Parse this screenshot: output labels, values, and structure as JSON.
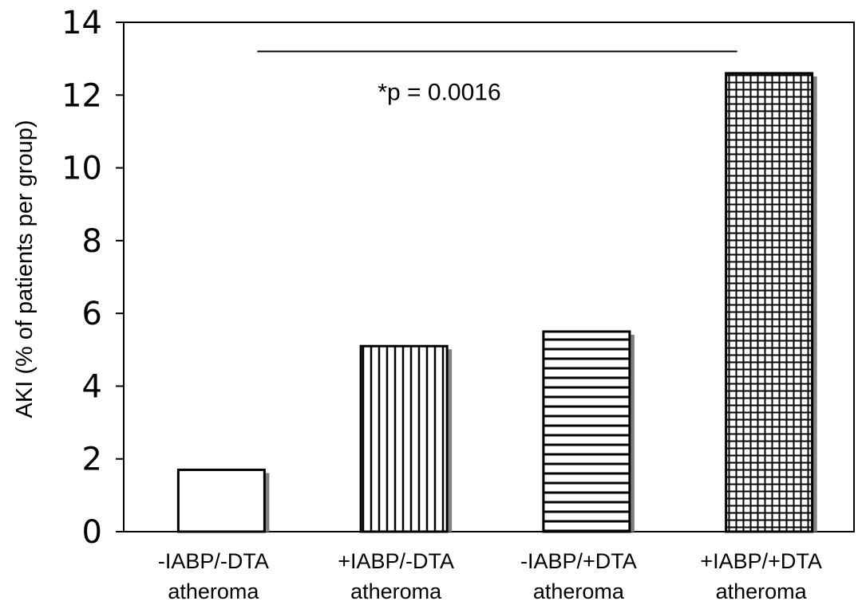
{
  "chart_data": {
    "type": "bar",
    "title": "",
    "xlabel": "",
    "ylabel": "AKI (% of patients per group)",
    "ylim": [
      0,
      14
    ],
    "yticks": [
      0,
      2,
      4,
      6,
      8,
      10,
      12,
      14
    ],
    "categories": [
      [
        "-IABP/-DTA",
        "atheroma"
      ],
      [
        "+IABP/-DTA",
        "atheroma"
      ],
      [
        "-IABP/+DTA",
        "atheroma"
      ],
      [
        "+IABP/+DTA",
        "atheroma"
      ]
    ],
    "values": [
      1.7,
      5.1,
      5.5,
      12.6
    ],
    "patterns": [
      "none",
      "vertical-lines",
      "horizontal-lines",
      "grid"
    ],
    "grid": false,
    "legend": "none",
    "annotation": {
      "text": "*p = 0.0016",
      "bracket_value": 13.2,
      "spans_categories": [
        0,
        3
      ]
    },
    "colors": {
      "bar_fill": "#ffffff",
      "bar_stroke": "#000000",
      "shadow": "#808080",
      "axis": "#000000"
    }
  }
}
